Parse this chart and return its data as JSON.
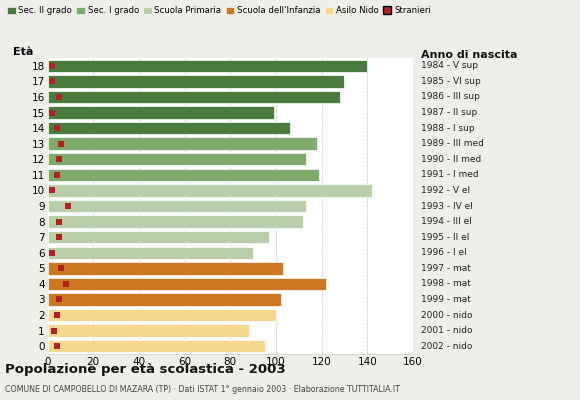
{
  "ages": [
    18,
    17,
    16,
    15,
    14,
    13,
    12,
    11,
    10,
    9,
    8,
    7,
    6,
    5,
    4,
    3,
    2,
    1,
    0
  ],
  "years": [
    "1984 - V sup",
    "1985 - VI sup",
    "1986 - III sup",
    "1987 - II sup",
    "1988 - I sup",
    "1989 - III med",
    "1990 - II med",
    "1991 - I med",
    "1992 - V el",
    "1993 - IV el",
    "1994 - III el",
    "1995 - II el",
    "1996 - I el",
    "1997 - mat",
    "1998 - mat",
    "1999 - mat",
    "2000 - nido",
    "2001 - nido",
    "2002 - nido"
  ],
  "bar_values": [
    140,
    130,
    128,
    99,
    106,
    118,
    113,
    119,
    142,
    113,
    112,
    97,
    90,
    103,
    122,
    102,
    100,
    88,
    95
  ],
  "stranieri": [
    2,
    2,
    5,
    2,
    4,
    6,
    5,
    4,
    2,
    9,
    5,
    5,
    2,
    6,
    8,
    5,
    4,
    3,
    4
  ],
  "bar_colors": [
    "#4a7c3f",
    "#4a7c3f",
    "#4a7c3f",
    "#4a7c3f",
    "#4a7c3f",
    "#7faa6b",
    "#7faa6b",
    "#7faa6b",
    "#b8cfaa",
    "#b8cfaa",
    "#b8cfaa",
    "#b8cfaa",
    "#b8cfaa",
    "#cc7722",
    "#cc7722",
    "#cc7722",
    "#f5d78e",
    "#f5d78e",
    "#f5d78e"
  ],
  "legend_labels": [
    "Sec. II grado",
    "Sec. I grado",
    "Scuola Primaria",
    "Scuola dell'Infanzia",
    "Asilo Nido",
    "Stranieri"
  ],
  "legend_colors": [
    "#4a7c3f",
    "#7faa6b",
    "#b8cfaa",
    "#cc7722",
    "#f5d78e",
    "#b22222"
  ],
  "title": "Popolazione per età scolastica - 2003",
  "subtitle": "COMUNE DI CAMPOBELLO DI MAZARA (TP) · Dati ISTAT 1° gennaio 2003 · Elaborazione TUTTITALIA.IT",
  "xlabel_eta": "Età",
  "xlabel_anno": "Anno di nascita",
  "xlim": [
    0,
    160
  ],
  "xticks": [
    0,
    20,
    40,
    60,
    80,
    100,
    120,
    140,
    160
  ],
  "background_color": "#efefea",
  "plot_bg": "#ffffff",
  "stranieri_color": "#b22222",
  "grid_color": "#aaaaaa"
}
